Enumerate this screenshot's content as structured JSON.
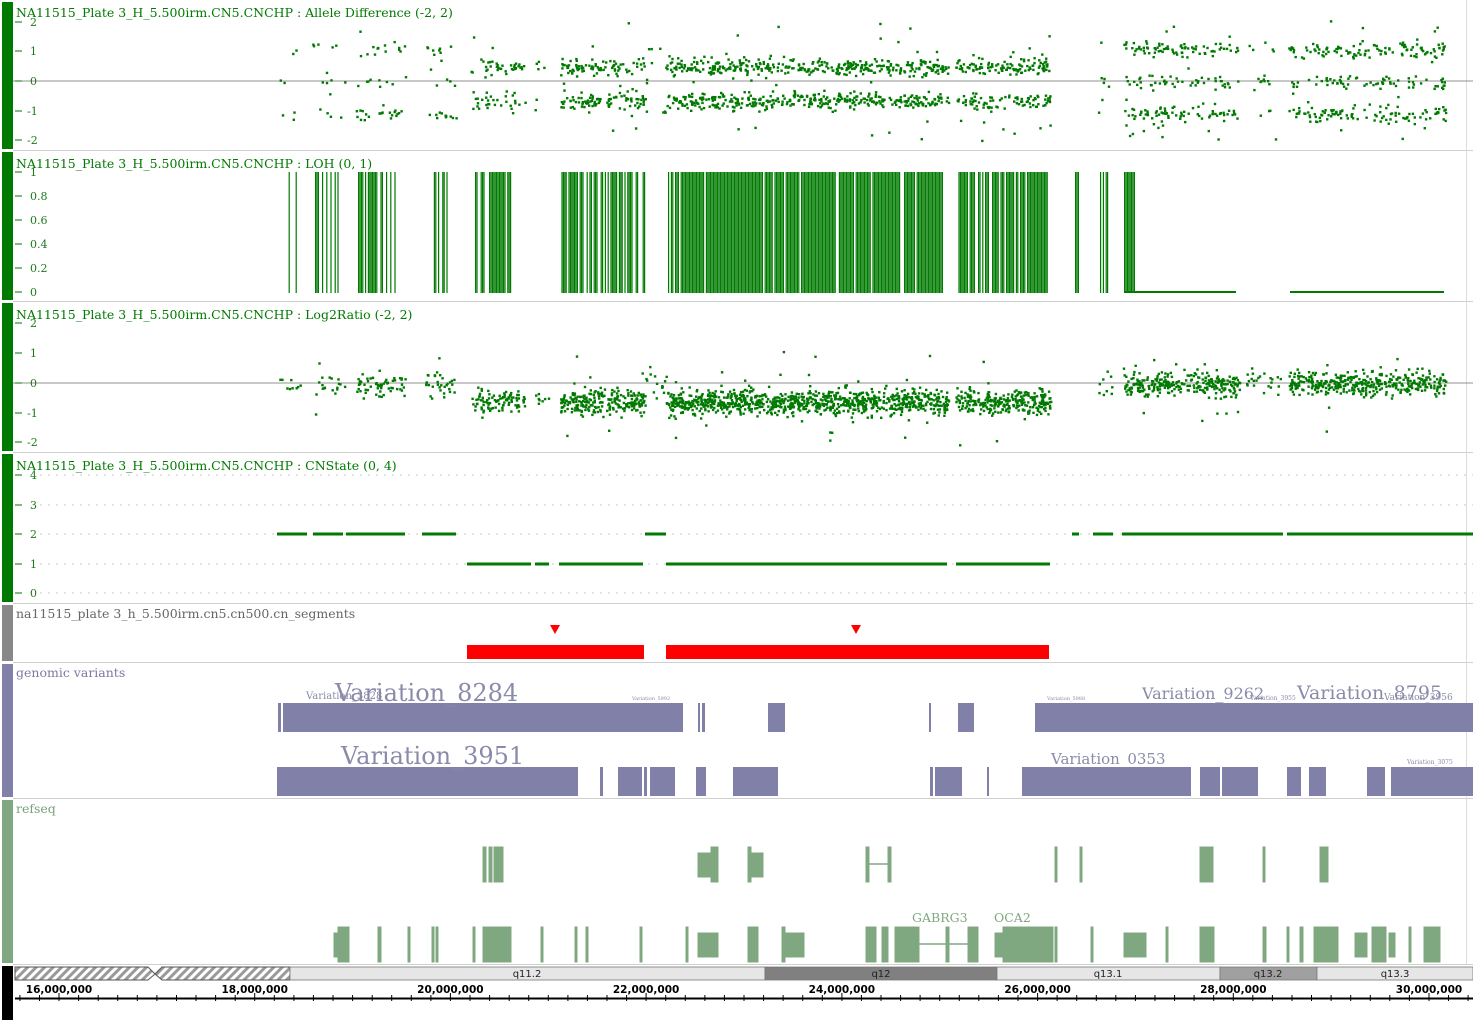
{
  "tracks": [
    {
      "title": "NA11515_Plate 3_H_5.500irm.CN5.CNCHP : Allele Difference (-2, 2)",
      "ticks": [
        "2",
        "1",
        "0",
        "-1",
        "-2"
      ]
    },
    {
      "title": "NA11515_Plate 3_H_5.500irm.CN5.CNCHP : LOH (0, 1)",
      "ticks": [
        "1",
        "0.8",
        "0.6",
        "0.4",
        "0.2",
        "0"
      ]
    },
    {
      "title": "NA11515_Plate 3_H_5.500irm.CN5.CNCHP : Log2Ratio (-2, 2)",
      "ticks": [
        "2",
        "1",
        "0",
        "-1",
        "-2"
      ]
    },
    {
      "title": "NA11515_Plate 3_H_5.500irm.CN5.CNCHP : CNState (0, 4)",
      "ticks": [
        "4",
        "3",
        "2",
        "1",
        "0"
      ]
    },
    {
      "title": "na11515_plate 3_h_5.500irm.cn5.cn500.cn_segments"
    },
    {
      "title": "genomic variants"
    },
    {
      "title": "refseq"
    }
  ],
  "colors": {
    "data_green": "#007a00",
    "segment_red": "#ff0000",
    "variant_purple": "#8080a8",
    "refseq_green": "#80a880",
    "band_gray": "#888888"
  },
  "variant_labels": [
    {
      "text": "Variation_3828",
      "size": "small"
    },
    {
      "text": "Variation_8284",
      "size": "large"
    },
    {
      "text": "Variation_5992",
      "size": "tiny"
    },
    {
      "text": "Variation_5988",
      "size": "tiny"
    },
    {
      "text": "Variation_9262",
      "size": "medium"
    },
    {
      "text": "Variation_3955",
      "size": "tiny"
    },
    {
      "text": "Variation_8795",
      "size": "large"
    },
    {
      "text": "Variation_3956",
      "size": "tiny"
    },
    {
      "text": "Variation_3951",
      "size": "large"
    },
    {
      "text": "Variation_0353",
      "size": "medium"
    },
    {
      "text": "Variation_3075",
      "size": "tiny"
    }
  ],
  "gene_labels": [
    "GABRG3",
    "OCA2"
  ],
  "cytobands": [
    "q11.2",
    "q12",
    "q13.1",
    "q13.2",
    "q13.3"
  ],
  "axis": {
    "labels": [
      "16,000,000",
      "18,000,000",
      "20,000,000",
      "22,000,000",
      "24,000,000",
      "26,000,000",
      "28,000,000",
      "30,000,000"
    ],
    "start_bp": 15550000,
    "end_bp": 30450000
  }
}
